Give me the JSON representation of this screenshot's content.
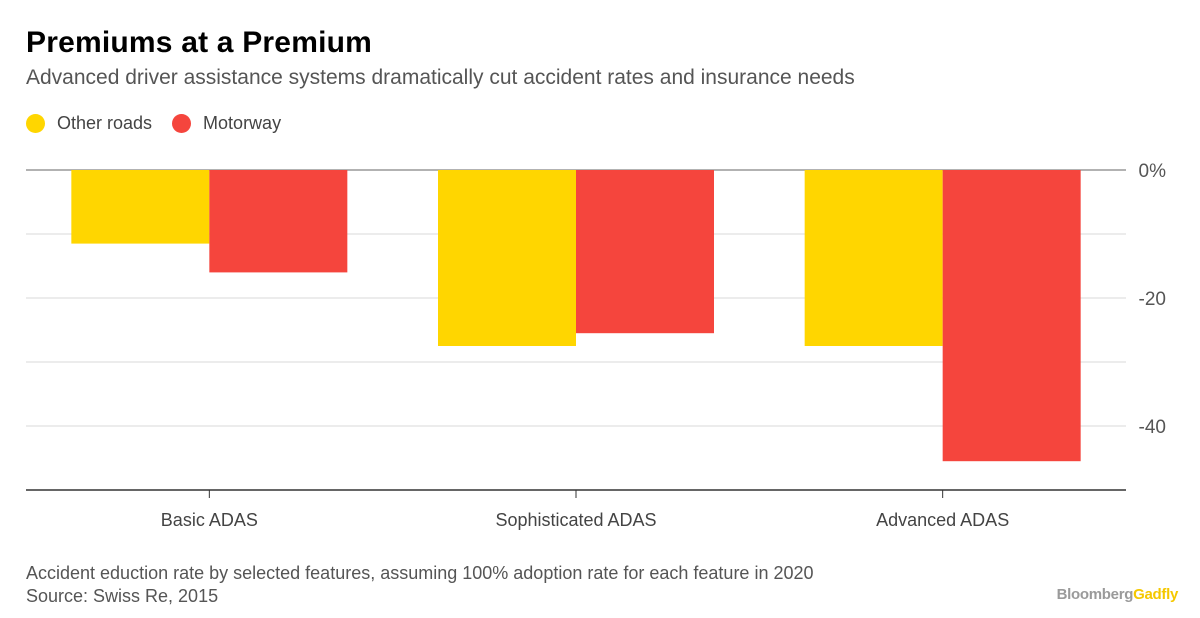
{
  "title": "Premiums at a Premium",
  "subtitle": "Advanced driver assistance systems dramatically cut accident rates and insurance needs",
  "legend": [
    {
      "label": "Other roads",
      "color": "#FFD600"
    },
    {
      "label": "Motorway",
      "color": "#F5453D"
    }
  ],
  "chart_data": {
    "type": "bar",
    "categories": [
      "Basic ADAS",
      "Sophisticated ADAS",
      "Advanced ADAS"
    ],
    "series": [
      {
        "name": "Other roads",
        "color": "#FFD600",
        "values": [
          -11.5,
          -27.5,
          -27.5
        ]
      },
      {
        "name": "Motorway",
        "color": "#F5453D",
        "values": [
          -16,
          -25.5,
          -45.5
        ]
      }
    ],
    "ylim": [
      -50,
      0
    ],
    "yticks": [
      0,
      -10,
      -20,
      -30,
      -40
    ],
    "ytick_labels": [
      "0%",
      "",
      "-20",
      "",
      "-40"
    ],
    "grid": true
  },
  "footnote": {
    "line1": "Accident eduction rate by selected features, assuming 100% adoption rate for each feature in 2020",
    "line2": "Source: Swiss Re, 2015"
  },
  "brand": {
    "part1": "Bloomberg",
    "part2": "Gadfly"
  }
}
